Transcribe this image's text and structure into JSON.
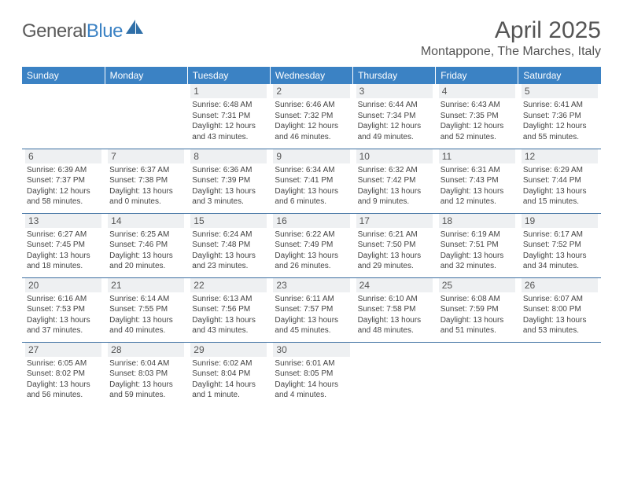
{
  "brand": {
    "name_part1": "General",
    "name_part2": "Blue"
  },
  "title": "April 2025",
  "location": "Montappone, The Marches, Italy",
  "colors": {
    "header_bg": "#3b82c4",
    "header_fg": "#ffffff",
    "daynum_bg": "#eef0f2",
    "row_border": "#3b6ea0",
    "text": "#444444",
    "title_color": "#555555",
    "logo_gray": "#5a5a5a",
    "logo_blue": "#3b82c4",
    "page_bg": "#ffffff"
  },
  "fonts": {
    "family": "Arial, Helvetica, sans-serif",
    "title_size": 30,
    "location_size": 16,
    "th_size": 12,
    "daynum_size": 12,
    "body_size": 10
  },
  "weekdays": [
    "Sunday",
    "Monday",
    "Tuesday",
    "Wednesday",
    "Thursday",
    "Friday",
    "Saturday"
  ],
  "weeks": [
    [
      {
        "n": "",
        "sr": "",
        "ss": "",
        "dl": ""
      },
      {
        "n": "",
        "sr": "",
        "ss": "",
        "dl": ""
      },
      {
        "n": "1",
        "sr": "Sunrise: 6:48 AM",
        "ss": "Sunset: 7:31 PM",
        "dl": "Daylight: 12 hours and 43 minutes."
      },
      {
        "n": "2",
        "sr": "Sunrise: 6:46 AM",
        "ss": "Sunset: 7:32 PM",
        "dl": "Daylight: 12 hours and 46 minutes."
      },
      {
        "n": "3",
        "sr": "Sunrise: 6:44 AM",
        "ss": "Sunset: 7:34 PM",
        "dl": "Daylight: 12 hours and 49 minutes."
      },
      {
        "n": "4",
        "sr": "Sunrise: 6:43 AM",
        "ss": "Sunset: 7:35 PM",
        "dl": "Daylight: 12 hours and 52 minutes."
      },
      {
        "n": "5",
        "sr": "Sunrise: 6:41 AM",
        "ss": "Sunset: 7:36 PM",
        "dl": "Daylight: 12 hours and 55 minutes."
      }
    ],
    [
      {
        "n": "6",
        "sr": "Sunrise: 6:39 AM",
        "ss": "Sunset: 7:37 PM",
        "dl": "Daylight: 12 hours and 58 minutes."
      },
      {
        "n": "7",
        "sr": "Sunrise: 6:37 AM",
        "ss": "Sunset: 7:38 PM",
        "dl": "Daylight: 13 hours and 0 minutes."
      },
      {
        "n": "8",
        "sr": "Sunrise: 6:36 AM",
        "ss": "Sunset: 7:39 PM",
        "dl": "Daylight: 13 hours and 3 minutes."
      },
      {
        "n": "9",
        "sr": "Sunrise: 6:34 AM",
        "ss": "Sunset: 7:41 PM",
        "dl": "Daylight: 13 hours and 6 minutes."
      },
      {
        "n": "10",
        "sr": "Sunrise: 6:32 AM",
        "ss": "Sunset: 7:42 PM",
        "dl": "Daylight: 13 hours and 9 minutes."
      },
      {
        "n": "11",
        "sr": "Sunrise: 6:31 AM",
        "ss": "Sunset: 7:43 PM",
        "dl": "Daylight: 13 hours and 12 minutes."
      },
      {
        "n": "12",
        "sr": "Sunrise: 6:29 AM",
        "ss": "Sunset: 7:44 PM",
        "dl": "Daylight: 13 hours and 15 minutes."
      }
    ],
    [
      {
        "n": "13",
        "sr": "Sunrise: 6:27 AM",
        "ss": "Sunset: 7:45 PM",
        "dl": "Daylight: 13 hours and 18 minutes."
      },
      {
        "n": "14",
        "sr": "Sunrise: 6:25 AM",
        "ss": "Sunset: 7:46 PM",
        "dl": "Daylight: 13 hours and 20 minutes."
      },
      {
        "n": "15",
        "sr": "Sunrise: 6:24 AM",
        "ss": "Sunset: 7:48 PM",
        "dl": "Daylight: 13 hours and 23 minutes."
      },
      {
        "n": "16",
        "sr": "Sunrise: 6:22 AM",
        "ss": "Sunset: 7:49 PM",
        "dl": "Daylight: 13 hours and 26 minutes."
      },
      {
        "n": "17",
        "sr": "Sunrise: 6:21 AM",
        "ss": "Sunset: 7:50 PM",
        "dl": "Daylight: 13 hours and 29 minutes."
      },
      {
        "n": "18",
        "sr": "Sunrise: 6:19 AM",
        "ss": "Sunset: 7:51 PM",
        "dl": "Daylight: 13 hours and 32 minutes."
      },
      {
        "n": "19",
        "sr": "Sunrise: 6:17 AM",
        "ss": "Sunset: 7:52 PM",
        "dl": "Daylight: 13 hours and 34 minutes."
      }
    ],
    [
      {
        "n": "20",
        "sr": "Sunrise: 6:16 AM",
        "ss": "Sunset: 7:53 PM",
        "dl": "Daylight: 13 hours and 37 minutes."
      },
      {
        "n": "21",
        "sr": "Sunrise: 6:14 AM",
        "ss": "Sunset: 7:55 PM",
        "dl": "Daylight: 13 hours and 40 minutes."
      },
      {
        "n": "22",
        "sr": "Sunrise: 6:13 AM",
        "ss": "Sunset: 7:56 PM",
        "dl": "Daylight: 13 hours and 43 minutes."
      },
      {
        "n": "23",
        "sr": "Sunrise: 6:11 AM",
        "ss": "Sunset: 7:57 PM",
        "dl": "Daylight: 13 hours and 45 minutes."
      },
      {
        "n": "24",
        "sr": "Sunrise: 6:10 AM",
        "ss": "Sunset: 7:58 PM",
        "dl": "Daylight: 13 hours and 48 minutes."
      },
      {
        "n": "25",
        "sr": "Sunrise: 6:08 AM",
        "ss": "Sunset: 7:59 PM",
        "dl": "Daylight: 13 hours and 51 minutes."
      },
      {
        "n": "26",
        "sr": "Sunrise: 6:07 AM",
        "ss": "Sunset: 8:00 PM",
        "dl": "Daylight: 13 hours and 53 minutes."
      }
    ],
    [
      {
        "n": "27",
        "sr": "Sunrise: 6:05 AM",
        "ss": "Sunset: 8:02 PM",
        "dl": "Daylight: 13 hours and 56 minutes."
      },
      {
        "n": "28",
        "sr": "Sunrise: 6:04 AM",
        "ss": "Sunset: 8:03 PM",
        "dl": "Daylight: 13 hours and 59 minutes."
      },
      {
        "n": "29",
        "sr": "Sunrise: 6:02 AM",
        "ss": "Sunset: 8:04 PM",
        "dl": "Daylight: 14 hours and 1 minute."
      },
      {
        "n": "30",
        "sr": "Sunrise: 6:01 AM",
        "ss": "Sunset: 8:05 PM",
        "dl": "Daylight: 14 hours and 4 minutes."
      },
      {
        "n": "",
        "sr": "",
        "ss": "",
        "dl": ""
      },
      {
        "n": "",
        "sr": "",
        "ss": "",
        "dl": ""
      },
      {
        "n": "",
        "sr": "",
        "ss": "",
        "dl": ""
      }
    ]
  ]
}
